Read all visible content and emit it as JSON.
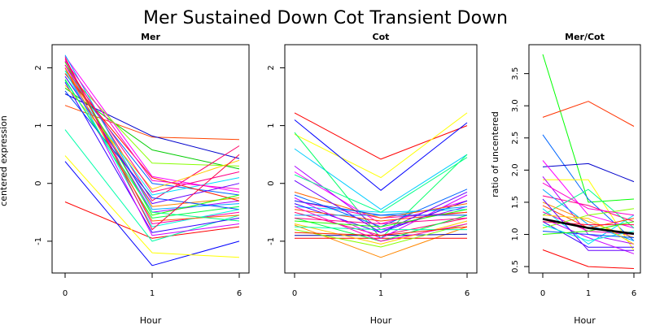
{
  "figure": {
    "title": "Mer Sustained Down Cot Transient Down"
  },
  "chart_data": [
    {
      "type": "line",
      "title": "Mer",
      "xlabel": "Hour",
      "ylabel": "centered expression",
      "categories": [
        "0",
        "1",
        "6"
      ],
      "ylim": [
        -1.55,
        2.4
      ],
      "yticks": [
        -1,
        0,
        1,
        2
      ],
      "series": [
        {
          "color": "#ff0000",
          "values": [
            -0.32,
            -0.95,
            -0.75
          ]
        },
        {
          "color": "#0000ff",
          "values": [
            0.38,
            -1.42,
            -1.0
          ]
        },
        {
          "color": "#ffff00",
          "values": [
            0.48,
            -1.2,
            -1.28
          ]
        },
        {
          "color": "#00ffaa",
          "values": [
            0.93,
            -1.0,
            -0.55
          ]
        },
        {
          "color": "#ff4400",
          "values": [
            1.35,
            0.8,
            0.76
          ]
        },
        {
          "color": "#0000cc",
          "values": [
            1.55,
            0.82,
            0.43
          ]
        },
        {
          "color": "#00cc00",
          "values": [
            1.65,
            0.58,
            0.25
          ]
        },
        {
          "color": "#ff00ff",
          "values": [
            2.2,
            0.12,
            -0.15
          ]
        },
        {
          "color": "#88ff00",
          "values": [
            1.95,
            0.35,
            0.3
          ]
        },
        {
          "color": "#0066ff",
          "values": [
            1.9,
            0.0,
            -0.2
          ]
        },
        {
          "color": "#ff0066",
          "values": [
            2.1,
            -0.3,
            0.65
          ]
        },
        {
          "color": "#aa00ff",
          "values": [
            2.05,
            -0.5,
            -0.3
          ]
        },
        {
          "color": "#00ddff",
          "values": [
            1.85,
            -0.2,
            0.1
          ]
        },
        {
          "color": "#ff8800",
          "values": [
            2.0,
            -0.4,
            -0.25
          ]
        },
        {
          "color": "#00ff44",
          "values": [
            1.8,
            -0.6,
            -0.4
          ]
        },
        {
          "color": "#ff00aa",
          "values": [
            2.15,
            -0.7,
            -0.5
          ]
        },
        {
          "color": "#3300ff",
          "values": [
            1.75,
            -0.85,
            -0.6
          ]
        },
        {
          "color": "#ffcc00",
          "values": [
            1.7,
            -0.1,
            0.4
          ]
        },
        {
          "color": "#00aaff",
          "values": [
            2.22,
            -0.45,
            -0.35
          ]
        },
        {
          "color": "#cc00ff",
          "values": [
            2.0,
            -0.9,
            -0.7
          ]
        },
        {
          "color": "#ff2200",
          "values": [
            1.9,
            0.1,
            -0.3
          ]
        },
        {
          "color": "#22ff00",
          "values": [
            2.1,
            -0.55,
            -0.2
          ]
        },
        {
          "color": "#0044ff",
          "values": [
            1.6,
            -0.25,
            -0.45
          ]
        },
        {
          "color": "#ff0088",
          "values": [
            2.05,
            -0.15,
            0.2
          ]
        },
        {
          "color": "#00ffdd",
          "values": [
            1.95,
            -0.75,
            -0.45
          ]
        },
        {
          "color": "#ff00cc",
          "values": [
            2.12,
            0.05,
            -0.1
          ]
        },
        {
          "color": "#6600ff",
          "values": [
            1.85,
            -0.35,
            0.0
          ]
        },
        {
          "color": "#ff6600",
          "values": [
            2.0,
            -0.65,
            -0.55
          ]
        },
        {
          "color": "#00ff88",
          "values": [
            1.78,
            -0.5,
            -0.65
          ]
        },
        {
          "color": "#ff0044",
          "values": [
            2.18,
            -0.8,
            0.5
          ]
        }
      ]
    },
    {
      "type": "line",
      "title": "Cot",
      "xlabel": "Hour",
      "ylabel": "",
      "categories": [
        "0",
        "1",
        "6"
      ],
      "ylim": [
        -1.55,
        2.4
      ],
      "yticks": [
        -1,
        0,
        1,
        2
      ],
      "series": [
        {
          "color": "#ff0000",
          "values": [
            1.22,
            0.42,
            1.0
          ]
        },
        {
          "color": "#ffff00",
          "values": [
            0.85,
            0.1,
            1.22
          ]
        },
        {
          "color": "#0000ff",
          "values": [
            1.1,
            -0.12,
            1.05
          ]
        },
        {
          "color": "#00ccff",
          "values": [
            0.6,
            -0.45,
            0.5
          ]
        },
        {
          "color": "#00ff66",
          "values": [
            0.88,
            -0.95,
            0.5
          ]
        },
        {
          "color": "#ff8800",
          "values": [
            -0.72,
            -1.28,
            -0.75
          ]
        },
        {
          "color": "#ff0000",
          "values": [
            -0.95,
            -0.95,
            -0.95
          ]
        },
        {
          "color": "#0000aa",
          "values": [
            -0.9,
            -0.9,
            -0.88
          ]
        },
        {
          "color": "#88ff00",
          "values": [
            -0.8,
            -1.1,
            -0.7
          ]
        },
        {
          "color": "#ff00ff",
          "values": [
            0.2,
            -0.7,
            -0.3
          ]
        },
        {
          "color": "#aa00ff",
          "values": [
            0.3,
            -0.8,
            -0.4
          ]
        },
        {
          "color": "#ff00aa",
          "values": [
            -0.3,
            -0.6,
            -0.5
          ]
        },
        {
          "color": "#00ddff",
          "values": [
            -0.4,
            -0.5,
            -0.45
          ]
        },
        {
          "color": "#0066ff",
          "values": [
            -0.2,
            -0.75,
            -0.1
          ]
        },
        {
          "color": "#ff0066",
          "values": [
            -0.5,
            -0.9,
            -0.6
          ]
        },
        {
          "color": "#00ff44",
          "values": [
            -0.6,
            -1.0,
            -0.55
          ]
        },
        {
          "color": "#ffcc00",
          "values": [
            -0.7,
            -1.05,
            -0.65
          ]
        },
        {
          "color": "#3300ff",
          "values": [
            -0.35,
            -0.85,
            -0.3
          ]
        },
        {
          "color": "#ff4400",
          "values": [
            -0.45,
            -0.65,
            -0.5
          ]
        },
        {
          "color": "#00aaff",
          "values": [
            -0.55,
            -0.55,
            -0.4
          ]
        },
        {
          "color": "#cc00ff",
          "values": [
            -0.25,
            -0.95,
            -0.2
          ]
        },
        {
          "color": "#ff0088",
          "values": [
            -0.6,
            -0.7,
            -0.6
          ]
        },
        {
          "color": "#00ffaa",
          "values": [
            -0.75,
            -0.8,
            -0.8
          ]
        },
        {
          "color": "#ff6600",
          "values": [
            -0.15,
            -0.6,
            -0.35
          ]
        },
        {
          "color": "#6600ff",
          "values": [
            0.05,
            -0.85,
            -0.15
          ]
        },
        {
          "color": "#ff00cc",
          "values": [
            -0.4,
            -1.0,
            -0.7
          ]
        },
        {
          "color": "#22ff00",
          "values": [
            -0.65,
            -0.75,
            -0.45
          ]
        },
        {
          "color": "#0044ff",
          "values": [
            -0.3,
            -0.55,
            -0.55
          ]
        },
        {
          "color": "#ff2200",
          "values": [
            -0.85,
            -0.9,
            -0.75
          ]
        },
        {
          "color": "#00ff88",
          "values": [
            0.15,
            -0.5,
            0.45
          ]
        }
      ]
    },
    {
      "type": "line",
      "title": "Mer/Cot",
      "xlabel": "Hour",
      "ylabel": "ratio of uncentered",
      "categories": [
        "0",
        "1",
        "6"
      ],
      "ylim": [
        0.4,
        3.95
      ],
      "yticks": [
        0.5,
        1.0,
        1.5,
        2.0,
        2.5,
        3.0,
        3.5
      ],
      "series": [
        {
          "color": "#00ff00",
          "values": [
            3.8,
            1.5,
            1.55
          ]
        },
        {
          "color": "#ff3300",
          "values": [
            2.82,
            3.07,
            2.68
          ]
        },
        {
          "color": "#0066ff",
          "values": [
            2.55,
            1.55,
            0.9
          ]
        },
        {
          "color": "#0000cc",
          "values": [
            2.05,
            2.1,
            1.82
          ]
        },
        {
          "color": "#ff0000",
          "values": [
            0.76,
            0.5,
            0.47
          ]
        },
        {
          "color": "#ffff00",
          "values": [
            1.85,
            1.85,
            0.75
          ]
        },
        {
          "color": "#ff00ff",
          "values": [
            2.15,
            1.3,
            1.1
          ]
        },
        {
          "color": "#aa00ff",
          "values": [
            1.9,
            1.0,
            0.85
          ]
        },
        {
          "color": "#00ddff",
          "values": [
            1.4,
            0.85,
            1.3
          ]
        },
        {
          "color": "#ff0088",
          "values": [
            1.6,
            1.45,
            1.2
          ]
        },
        {
          "color": "#00ff88",
          "values": [
            1.3,
            1.7,
            1.1
          ]
        },
        {
          "color": "#ff8800",
          "values": [
            1.5,
            1.2,
            0.95
          ]
        },
        {
          "color": "#3300ff",
          "values": [
            1.2,
            0.8,
            0.8
          ]
        },
        {
          "color": "#ff00aa",
          "values": [
            1.35,
            1.05,
            1.0
          ]
        },
        {
          "color": "#88ff00",
          "values": [
            1.1,
            1.3,
            1.4
          ]
        },
        {
          "color": "#00aaff",
          "values": [
            1.7,
            1.15,
            0.9
          ]
        },
        {
          "color": "#cc00ff",
          "values": [
            1.25,
            0.95,
            0.7
          ]
        },
        {
          "color": "#ff4400",
          "values": [
            1.45,
            1.1,
            1.25
          ]
        },
        {
          "color": "#00ffdd",
          "values": [
            1.15,
            0.9,
            1.05
          ]
        },
        {
          "color": "#ff00cc",
          "values": [
            1.8,
            1.4,
            1.3
          ]
        },
        {
          "color": "#0044ff",
          "values": [
            1.05,
            1.0,
            0.95
          ]
        },
        {
          "color": "#ffcc00",
          "values": [
            1.3,
            1.25,
            0.85
          ]
        },
        {
          "color": "#6600ff",
          "values": [
            1.55,
            0.75,
            0.75
          ]
        },
        {
          "color": "#ff0044",
          "values": [
            1.2,
            1.15,
            1.15
          ]
        },
        {
          "color": "#22ff00",
          "values": [
            1.0,
            1.05,
            1.2
          ]
        },
        {
          "color": "#000000",
          "bold": true,
          "values": [
            1.24,
            1.1,
            1.01
          ]
        }
      ]
    }
  ]
}
